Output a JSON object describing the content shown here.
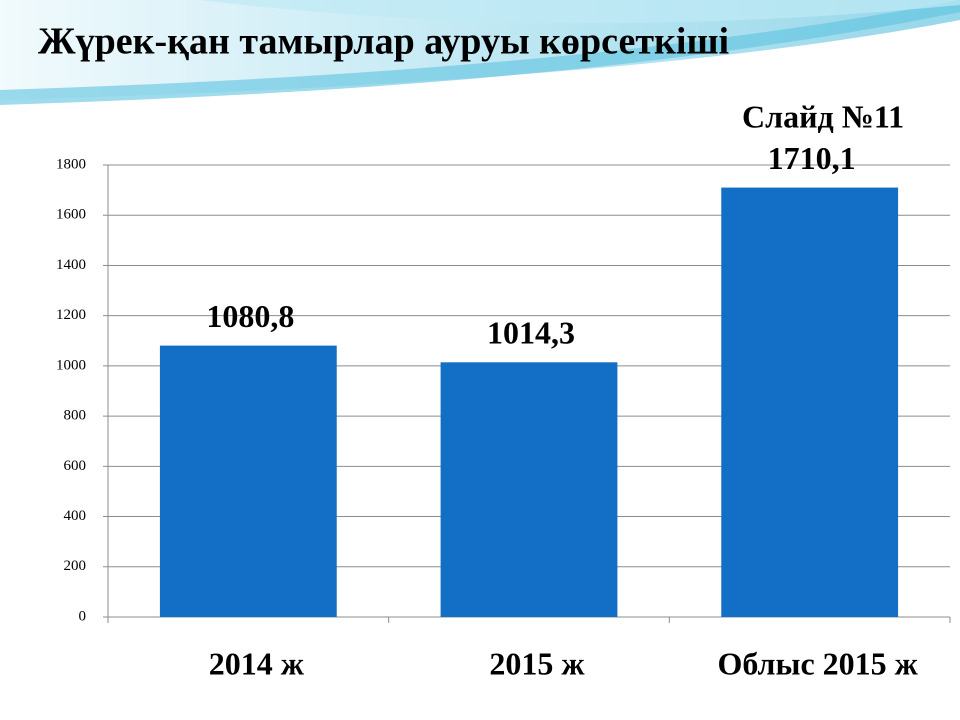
{
  "chart_data": {
    "type": "bar",
    "title": "Жүрек-қан тамырлар  ауруы көрсеткіші",
    "annotation": "Слайд №11",
    "categories": [
      "2014 ж",
      "2015 ж",
      "Облыс 2015 ж"
    ],
    "values": [
      1080.8,
      1014.3,
      1710.1
    ],
    "value_labels": [
      "1080,8",
      "1014,3",
      "1710,1"
    ],
    "color": "#136fc6",
    "ylim": [
      0,
      1800
    ],
    "yticks": [
      0,
      200,
      400,
      600,
      800,
      1000,
      1200,
      1400,
      1600,
      1800
    ],
    "grid": true
  }
}
